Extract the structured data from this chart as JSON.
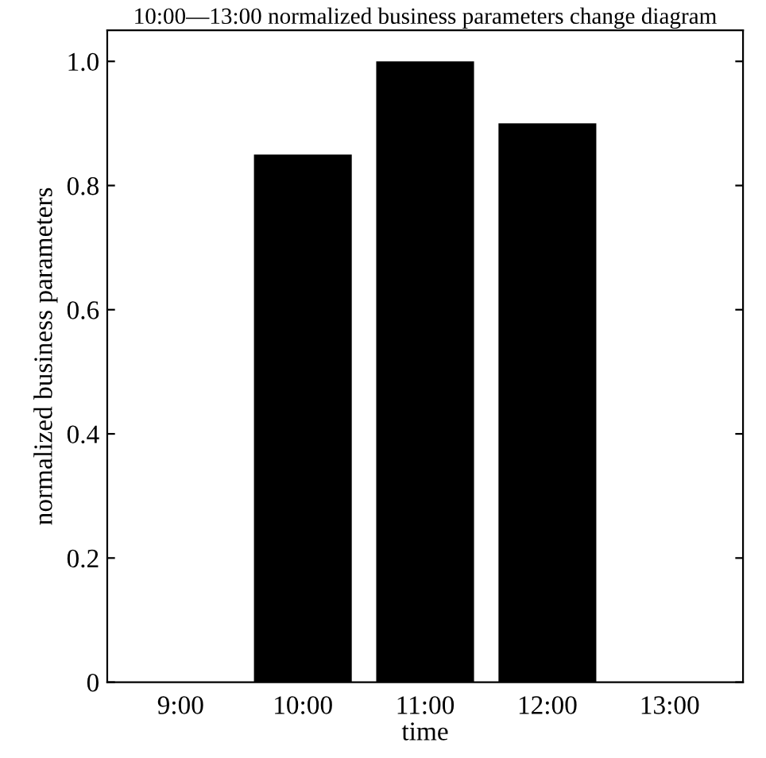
{
  "chart_data": {
    "type": "bar",
    "title": "10:00—13:00 normalized business parameters change diagram",
    "xlabel": "time",
    "ylabel": "normalized business parameters",
    "categories": [
      "9:00",
      "10:00",
      "11:00",
      "12:00",
      "13:00"
    ],
    "values": [
      0,
      0.85,
      1.0,
      0.9,
      0
    ],
    "color": "#000000",
    "ylim": [
      0,
      1.05
    ],
    "yticks": [
      0,
      0.2,
      0.4,
      0.6,
      0.8,
      {
        "value": 1.0,
        "label": "1.0"
      }
    ],
    "grid": false,
    "legend": false
  }
}
